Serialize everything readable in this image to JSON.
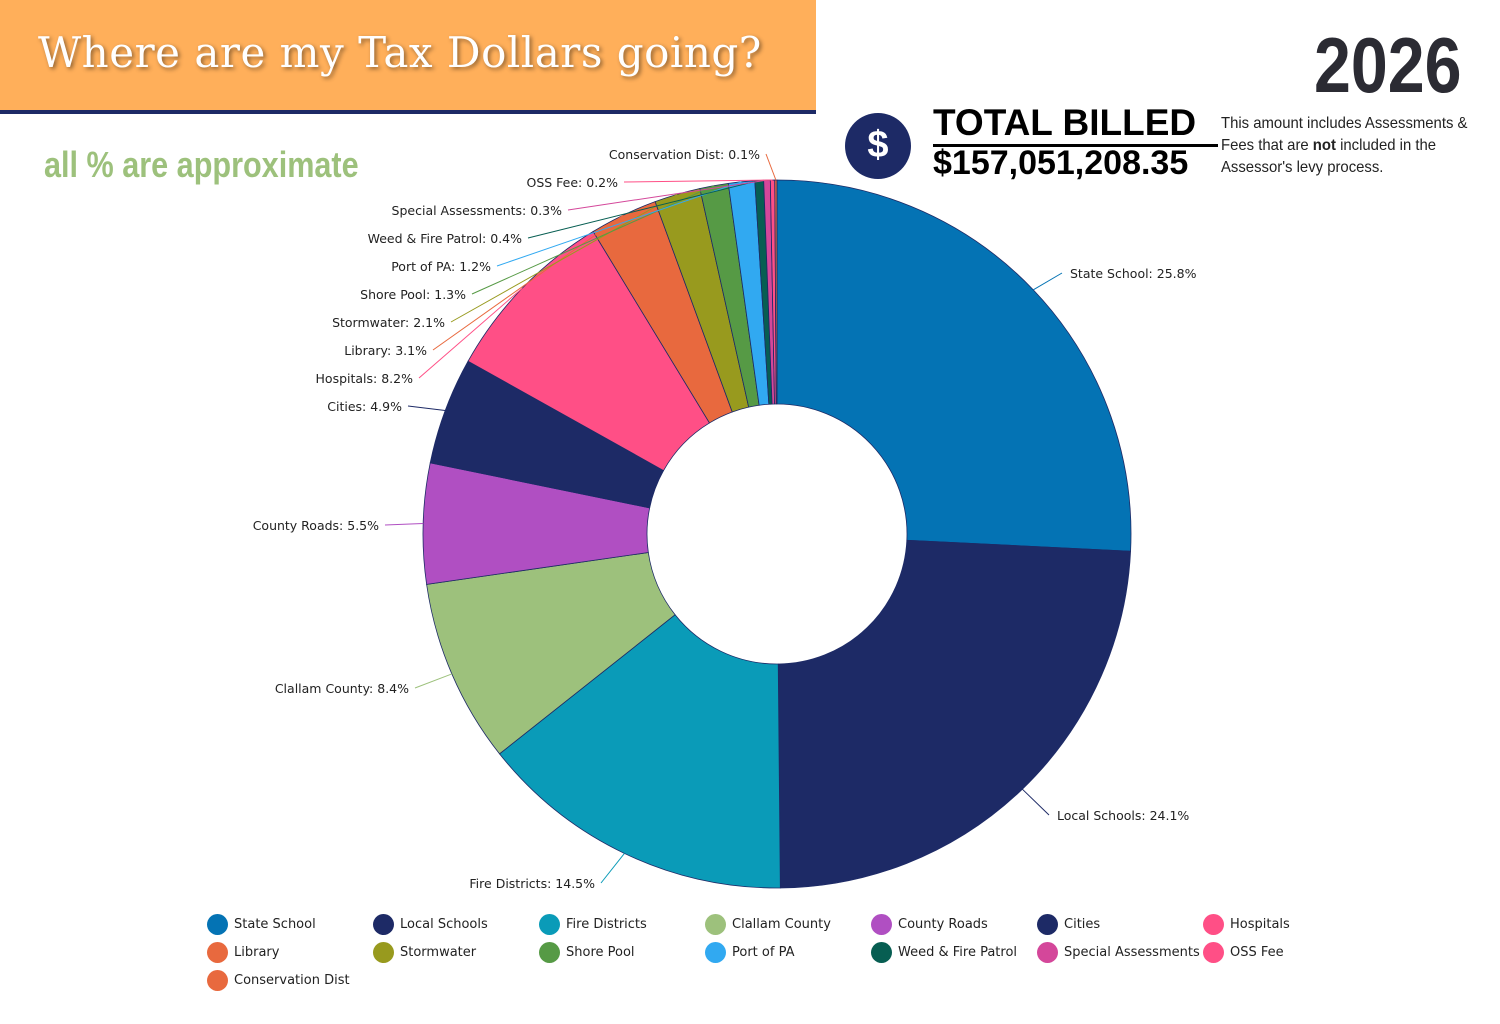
{
  "header": {
    "title": "Where are my Tax Dollars going?",
    "year": "2026",
    "subtitle": "all % are approximate"
  },
  "total": {
    "icon": "dollar-icon",
    "icon_glyph": "$",
    "label": "TOTAL BILLED",
    "amount": "$157,051,208.35",
    "note_before": "This amount includes Assessments & Fees that are ",
    "note_bold": "not",
    "note_after": " included in the Assessor's levy process."
  },
  "chart_data": {
    "type": "pie",
    "donut": true,
    "legend_position": "bottom",
    "slices": [
      {
        "name": "State School",
        "value": 25.8,
        "label": "State School: 25.8%",
        "color": "#0473B4"
      },
      {
        "name": "Local Schools",
        "value": 24.1,
        "label": "Local Schools: 24.1%",
        "color": "#1d2a66"
      },
      {
        "name": "Fire Districts",
        "value": 14.5,
        "label": "Fire Districts: 14.5%",
        "color": "#0a9bb8"
      },
      {
        "name": "Clallam County",
        "value": 8.4,
        "label": "Clallam County: 8.4%",
        "color": "#9dc17c"
      },
      {
        "name": "County Roads",
        "value": 5.5,
        "label": "County Roads: 5.5%",
        "color": "#b04fc2"
      },
      {
        "name": "Cities",
        "value": 4.9,
        "label": "Cities: 4.9%",
        "color": "#1d2a66"
      },
      {
        "name": "Hospitals",
        "value": 8.2,
        "label": "Hospitals: 8.2%",
        "color": "#ff4f86"
      },
      {
        "name": "Library",
        "value": 3.1,
        "label": "Library: 3.1%",
        "color": "#e8693e"
      },
      {
        "name": "Stormwater",
        "value": 2.1,
        "label": "Stormwater: 2.1%",
        "color": "#989a1e"
      },
      {
        "name": "Shore Pool",
        "value": 1.3,
        "label": "Shore Pool: 1.3%",
        "color": "#569a45"
      },
      {
        "name": "Port of PA",
        "value": 1.2,
        "label": "Port of PA: 1.2%",
        "color": "#31a9f1"
      },
      {
        "name": "Weed & Fire Patrol",
        "value": 0.4,
        "label": "Weed & Fire Patrol: 0.4%",
        "color": "#075e52"
      },
      {
        "name": "Special Assessments",
        "value": 0.3,
        "label": "Special Assessments: 0.3%",
        "color": "#d4479a"
      },
      {
        "name": "OSS Fee",
        "value": 0.2,
        "label": "OSS Fee: 0.2%",
        "color": "#ff4f86"
      },
      {
        "name": "Conservation Dist",
        "value": 0.1,
        "label": "Conservation Dist: 0.1%",
        "color": "#e8693e"
      }
    ]
  }
}
